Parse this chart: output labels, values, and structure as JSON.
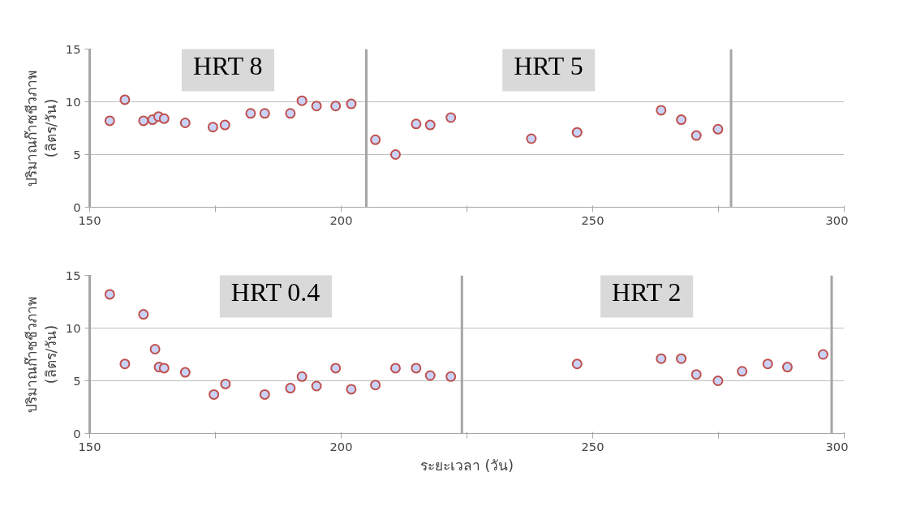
{
  "chart_data": [
    {
      "type": "scatter",
      "ylabel": "ปริมาณก๊าซชีวภาพ\n(ลิตร/วัน)",
      "xlim": [
        150,
        300
      ],
      "ylim": [
        0,
        15
      ],
      "xticks": [
        150,
        {
          "value": 175,
          "label": null
        },
        200,
        {
          "value": 225,
          "label": null
        },
        250,
        {
          "value": 275,
          "label": null
        },
        300
      ],
      "yticks": [
        0,
        5,
        10,
        15
      ],
      "grid": "y",
      "marker": "circle",
      "ref_lines": [
        {
          "axis": "x",
          "value": 205
        },
        {
          "axis": "x",
          "value": 277.5
        }
      ],
      "annotations": [
        "HRT 8",
        "HRT 5"
      ],
      "series": [
        {
          "color": "#c0504d",
          "x": [
            154,
            157,
            160.7,
            162.5,
            163.7,
            164.8,
            169,
            174.5,
            176.9,
            182,
            184.8,
            189.9,
            192.2,
            195.1,
            198.9,
            202,
            206.8,
            210.8,
            214.9,
            217.7,
            221.8,
            237.8,
            246.9,
            263.6,
            267.6,
            270.6,
            274.9
          ],
          "values": [
            8.2,
            10.2,
            8.2,
            8.3,
            8.6,
            8.4,
            8.0,
            7.6,
            7.8,
            8.9,
            8.9,
            8.9,
            10.1,
            9.6,
            9.6,
            9.8,
            6.4,
            5.0,
            7.9,
            7.8,
            8.5,
            6.5,
            7.1,
            9.2,
            8.3,
            6.8,
            7.4
          ]
        }
      ]
    },
    {
      "type": "scatter",
      "ylabel": "ปริมาณก๊าซชีวภาพ\n(ลิตร/วัน)",
      "xlabel": "ระยะเวลา (วัน)",
      "xlim": [
        150,
        300
      ],
      "ylim": [
        0,
        15
      ],
      "xticks": [
        150,
        {
          "value": 175,
          "label": null
        },
        200,
        {
          "value": 225,
          "label": null
        },
        250,
        {
          "value": 275,
          "label": null
        },
        300
      ],
      "yticks": [
        0,
        5,
        10,
        15
      ],
      "grid": "y",
      "marker": "circle",
      "ref_lines": [
        {
          "axis": "x",
          "value": 224
        },
        {
          "axis": "x",
          "value": 297.5
        }
      ],
      "annotations": [
        "HRT 0.4",
        "HRT 2"
      ],
      "series": [
        {
          "color": "#c0504d",
          "x": [
            154,
            157,
            160.7,
            163,
            163.8,
            164.8,
            169,
            174.7,
            177,
            184.8,
            189.9,
            192.2,
            195.1,
            198.9,
            202,
            206.8,
            210.8,
            214.9,
            217.7,
            221.8,
            246.9,
            263.6,
            267.6,
            270.6,
            274.9,
            279.7,
            284.8,
            288.7,
            295.8
          ],
          "values": [
            13.2,
            6.6,
            11.3,
            8.0,
            6.3,
            6.2,
            5.8,
            3.7,
            4.7,
            3.7,
            4.3,
            5.4,
            4.5,
            6.2,
            4.2,
            4.6,
            6.2,
            6.2,
            5.5,
            5.4,
            6.6,
            7.1,
            7.1,
            5.6,
            5.0,
            5.9,
            6.6,
            6.3,
            7.5
          ]
        }
      ]
    }
  ]
}
